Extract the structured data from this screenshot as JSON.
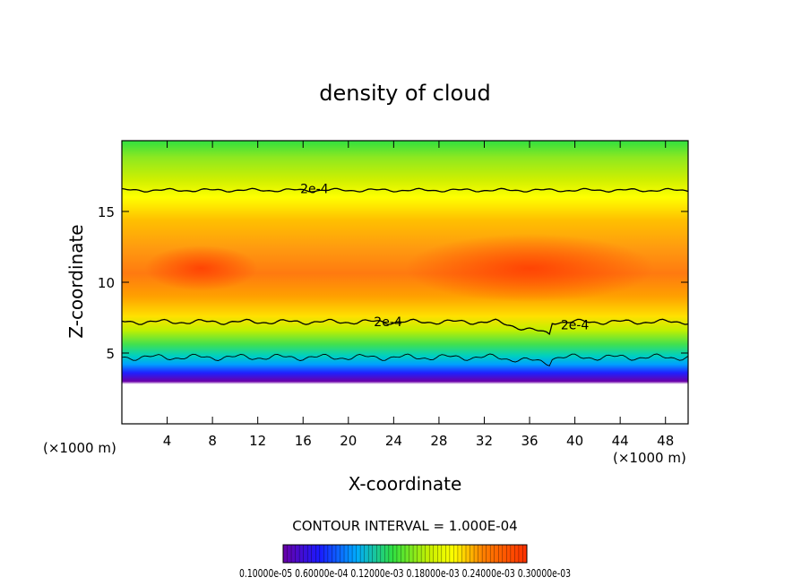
{
  "chart_data": {
    "type": "heatmap",
    "title": "density of cloud",
    "xlabel": "X-coordinate",
    "ylabel": "Z-coordinate",
    "x_unit": "(×1000 m)",
    "x_unit_right": "(×1000 m)",
    "xlim": [
      0,
      50
    ],
    "ylim": [
      0,
      20
    ],
    "x_ticks": [
      4,
      8,
      12,
      16,
      20,
      24,
      28,
      32,
      36,
      40,
      44,
      48
    ],
    "y_ticks": [
      5,
      10,
      15
    ],
    "contour_interval_text": "CONTOUR INTERVAL = 1.000E-04",
    "colorbar_label_text": "0.10000e-05 0.60000e-04 0.12000e-03 0.18000e-03 0.24000e-03 0.30000e-03",
    "contour_labels": [
      {
        "text": "2e-4",
        "x": 17.0,
        "y": 16.6
      },
      {
        "text": "2e-4",
        "x": 23.5,
        "y": 7.2
      },
      {
        "text": "2e-4",
        "x": 40.0,
        "y": 7.0
      }
    ],
    "cloud_base_z": 3.5,
    "cloud_core_z": 11.0,
    "contour_2e4_upper_z": 16.5,
    "contour_2e4_lower_z": 7.2,
    "colormap": [
      "#6a00a8",
      "#1a1aff",
      "#00aaff",
      "#00e0c0",
      "#30e040",
      "#c8f000",
      "#ffff00",
      "#ffc000",
      "#ff8000",
      "#ff3000"
    ]
  }
}
